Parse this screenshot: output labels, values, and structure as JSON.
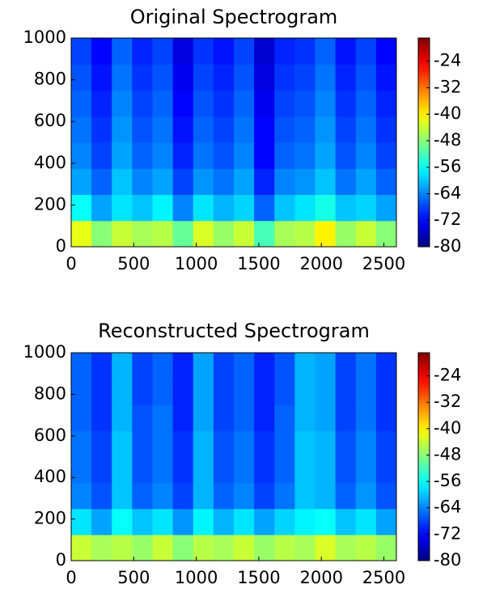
{
  "chart_data": [
    {
      "type": "heatmap",
      "title": "Original Spectrogram",
      "xlim": [
        0,
        2600
      ],
      "ylim": [
        0,
        1000
      ],
      "xticks": [
        0,
        500,
        1000,
        1500,
        2000,
        2500
      ],
      "yticks": [
        0,
        200,
        400,
        600,
        800,
        1000
      ],
      "clim": [
        -80,
        -17
      ],
      "cticks": [
        -24,
        -32,
        -40,
        -48,
        -56,
        -64,
        -72,
        -80
      ],
      "colormap": "jet",
      "z": [
        [
          -42,
          -48,
          -44,
          -46,
          -45,
          -50,
          -43,
          -47,
          -44,
          -52,
          -46,
          -45,
          -40,
          -47,
          -44,
          -48
        ],
        [
          -56,
          -62,
          -58,
          -60,
          -57,
          -64,
          -58,
          -61,
          -59,
          -66,
          -60,
          -58,
          -55,
          -60,
          -59,
          -62
        ],
        [
          -62,
          -66,
          -60,
          -64,
          -62,
          -68,
          -63,
          -65,
          -62,
          -70,
          -64,
          -63,
          -60,
          -65,
          -62,
          -66
        ],
        [
          -64,
          -68,
          -62,
          -66,
          -64,
          -70,
          -65,
          -67,
          -64,
          -72,
          -66,
          -65,
          -62,
          -67,
          -64,
          -68
        ],
        [
          -65,
          -69,
          -63,
          -67,
          -65,
          -71,
          -66,
          -68,
          -65,
          -72,
          -67,
          -66,
          -63,
          -68,
          -65,
          -69
        ],
        [
          -66,
          -70,
          -64,
          -68,
          -66,
          -72,
          -67,
          -69,
          -66,
          -73,
          -68,
          -67,
          -64,
          -69,
          -66,
          -70
        ],
        [
          -67,
          -71,
          -65,
          -69,
          -67,
          -73,
          -68,
          -70,
          -67,
          -74,
          -69,
          -68,
          -65,
          -70,
          -67,
          -71
        ],
        [
          -68,
          -72,
          -66,
          -70,
          -68,
          -74,
          -69,
          -71,
          -68,
          -75,
          -70,
          -69,
          -66,
          -71,
          -68,
          -72
        ]
      ]
    },
    {
      "type": "heatmap",
      "title": "Reconstructed Spectrogram",
      "xlim": [
        0,
        2600
      ],
      "ylim": [
        0,
        1000
      ],
      "xticks": [
        0,
        500,
        1000,
        1500,
        2000,
        2500
      ],
      "yticks": [
        0,
        200,
        400,
        600,
        800,
        1000
      ],
      "clim": [
        -80,
        -17
      ],
      "cticks": [
        -24,
        -32,
        -40,
        -48,
        -56,
        -64,
        -72,
        -80
      ],
      "colormap": "jet",
      "z": [
        [
          -44,
          -46,
          -45,
          -47,
          -44,
          -48,
          -45,
          -46,
          -44,
          -47,
          -45,
          -46,
          -43,
          -46,
          -45,
          -47
        ],
        [
          -58,
          -62,
          -56,
          -60,
          -58,
          -63,
          -57,
          -61,
          -58,
          -62,
          -59,
          -57,
          -56,
          -60,
          -58,
          -62
        ],
        [
          -64,
          -67,
          -60,
          -66,
          -64,
          -68,
          -61,
          -66,
          -64,
          -68,
          -65,
          -60,
          -61,
          -66,
          -63,
          -67
        ],
        [
          -65,
          -68,
          -60,
          -67,
          -65,
          -69,
          -61,
          -67,
          -65,
          -69,
          -66,
          -60,
          -61,
          -67,
          -64,
          -68
        ],
        [
          -65,
          -68,
          -60,
          -67,
          -65,
          -69,
          -61,
          -67,
          -65,
          -69,
          -66,
          -60,
          -61,
          -67,
          -64,
          -68
        ],
        [
          -66,
          -69,
          -61,
          -67,
          -65,
          -70,
          -62,
          -68,
          -66,
          -70,
          -66,
          -61,
          -62,
          -68,
          -65,
          -69
        ],
        [
          -66,
          -69,
          -61,
          -68,
          -66,
          -70,
          -62,
          -68,
          -66,
          -70,
          -67,
          -61,
          -62,
          -68,
          -65,
          -69
        ],
        [
          -66,
          -69,
          -61,
          -68,
          -66,
          -70,
          -62,
          -68,
          -66,
          -70,
          -67,
          -61,
          -62,
          -68,
          -65,
          -69
        ]
      ]
    }
  ]
}
